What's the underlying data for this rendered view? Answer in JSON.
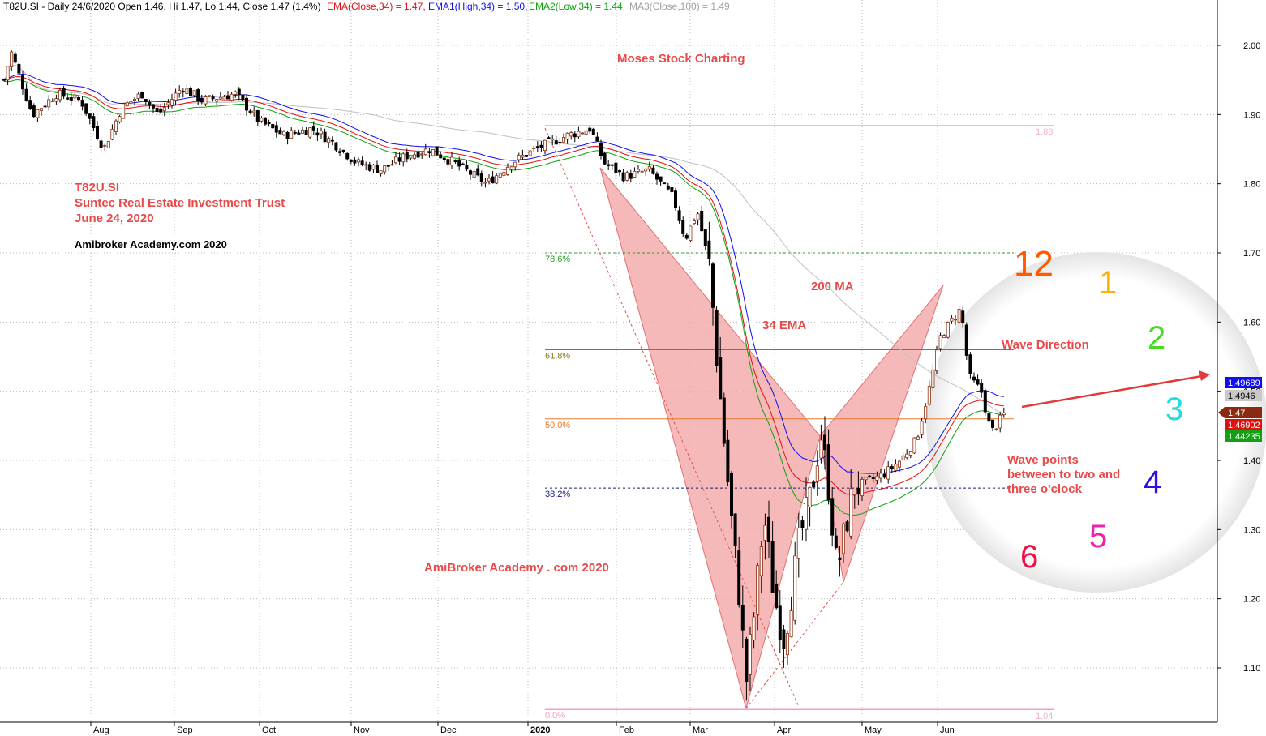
{
  "header": {
    "symbol_line": "T82U.SI - Daily 24/6/2020 Open 1.46, Hi 1.47, Lo 1.44, Close 1.47 (1.4%)",
    "ema": "EMA(Close,34) = 1.47,",
    "ema1": "EMA1(High,34) = 1.50,",
    "ema2": "EMA2(Low,34) = 1.44,",
    "ma3": "MA3(Close,100) = 1.49"
  },
  "annotations": {
    "moses": "Moses Stock Charting",
    "ticker": "T82U.SI",
    "company": "Suntec Real Estate Investment Trust",
    "date": "June 24, 2020",
    "amibroker_black": "Amibroker Academy.com  2020",
    "amibroker_red": "AmiBroker Academy . com  2020",
    "ma200": "200 MA",
    "ema34": "34 EMA",
    "wave_direction": "Wave Direction",
    "wave_points_1": "Wave points",
    "wave_points_2": "between to two and",
    "wave_points_3": "three o'clock"
  },
  "clock": [
    {
      "label": "12",
      "color": "#ff5a00"
    },
    {
      "label": "1",
      "color": "#ffb000"
    },
    {
      "label": "2",
      "color": "#44dd22"
    },
    {
      "label": "3",
      "color": "#22dddd"
    },
    {
      "label": "4",
      "color": "#3311dd"
    },
    {
      "label": "5",
      "color": "#ee22aa"
    },
    {
      "label": "6",
      "color": "#ee1144"
    }
  ],
  "fib_levels": [
    {
      "label": "78.6%",
      "value": 1.7,
      "color": "#2a9d2a"
    },
    {
      "label": "61.8%",
      "value": 1.56,
      "color": "#8a7a10"
    },
    {
      "label": "50.0%",
      "value": 1.46,
      "color": "#e87a30"
    },
    {
      "label": "38.2%",
      "value": 1.36,
      "color": "#1a1a7a"
    },
    {
      "label": "0.0%",
      "value": 1.04,
      "color": "#f0a0c0"
    }
  ],
  "level_labels": {
    "top": "1.88",
    "bottom": "1.04"
  },
  "price_tags": [
    {
      "text": "1.49689",
      "bg": "#1010ee",
      "fg": "#ffffff"
    },
    {
      "text": "1.4946",
      "bg": "#c8c8c8",
      "fg": "#000000"
    },
    {
      "text": "1.47",
      "bg": "#8a2a10",
      "fg": "#ffffff"
    },
    {
      "text": "1.46902",
      "bg": "#e01010",
      "fg": "#ffffff"
    },
    {
      "text": "1.44235",
      "bg": "#10a010",
      "fg": "#ffffff"
    }
  ],
  "chart_data": {
    "type": "candlestick",
    "title": "T82U.SI - Daily",
    "ylim": [
      1.02,
      2.06
    ],
    "y_ticks": [
      "2.00",
      "1.90",
      "1.80",
      "1.70",
      "1.60",
      "1.50",
      "1.40",
      "1.30",
      "1.20",
      "1.10"
    ],
    "x_ticks": [
      "Aug",
      "Sep",
      "Oct",
      "Nov",
      "Dec",
      "2020",
      "Feb",
      "Mar",
      "Apr",
      "May",
      "Jun"
    ],
    "series": [
      {
        "name": "EMA(Close,34)",
        "color": "#e01010",
        "final": 1.47
      },
      {
        "name": "EMA1(High,34)",
        "color": "#1010ee",
        "final": 1.5
      },
      {
        "name": "EMA2(Low,34)",
        "color": "#10a010",
        "final": 1.44
      },
      {
        "name": "MA3(Close,100)",
        "color": "#c0c0c0",
        "final": 1.49
      }
    ],
    "last_bar": {
      "open": 1.46,
      "high": 1.47,
      "low": 1.44,
      "close": 1.47,
      "change_pct": 1.4
    }
  }
}
